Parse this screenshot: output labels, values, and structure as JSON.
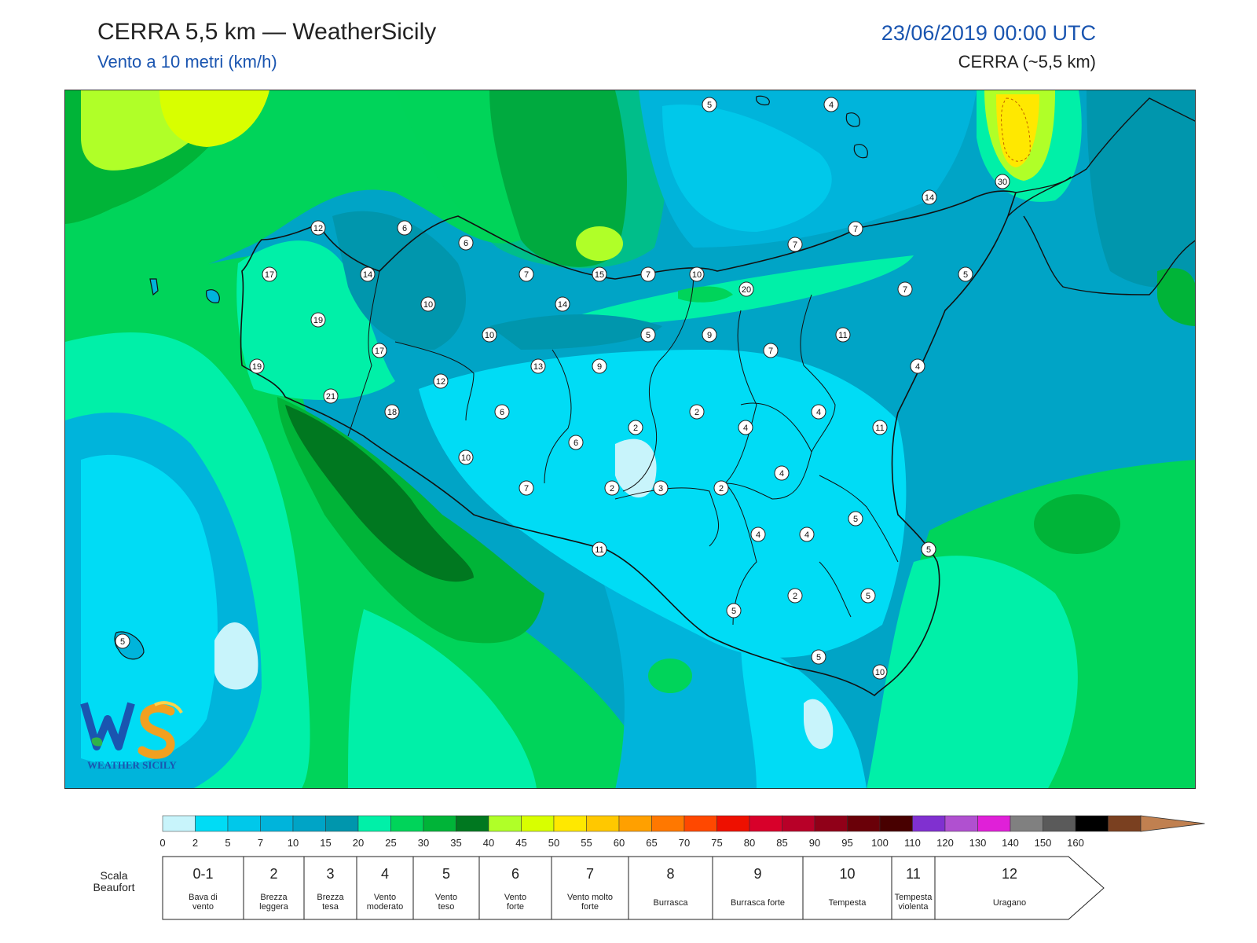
{
  "header": {
    "title": "CERRA 5,5 km — WeatherSicily",
    "subtitle": "Vento a 10 metri (km/h)",
    "datetime": "23/06/2019 00:00 UTC",
    "model": "CERRA (~5,5 km)"
  },
  "logo": {
    "text": "WEATHER SICILY",
    "icon": "ws-logo-icon"
  },
  "colorbar": {
    "ticks": [
      "0",
      "2",
      "5",
      "7",
      "10",
      "15",
      "20",
      "25",
      "30",
      "35",
      "40",
      "45",
      "50",
      "55",
      "60",
      "65",
      "70",
      "75",
      "80",
      "85",
      "90",
      "95",
      "100",
      "110",
      "120",
      "130",
      "140",
      "150",
      "160"
    ],
    "colors": [
      "#c8f4fb",
      "#00dcf5",
      "#00c8ea",
      "#00b4db",
      "#00a4c6",
      "#0096ad",
      "#00f0a8",
      "#00d45a",
      "#00b438",
      "#007820",
      "#b0ff28",
      "#d8ff00",
      "#ffe800",
      "#ffc800",
      "#ffa000",
      "#ff7800",
      "#ff4800",
      "#ee1000",
      "#d8002a",
      "#b80028",
      "#900018",
      "#6a0008",
      "#480000",
      "#8030d0",
      "#b050d0",
      "#e020d8",
      "#808080",
      "#5a5a5a",
      "#000000",
      "#7a4020",
      "#c08050"
    ]
  },
  "beaufort": {
    "label": "Scala Beaufort",
    "classes": [
      {
        "num": "0-1",
        "desc": "Bava di vento"
      },
      {
        "num": "2",
        "desc": "Brezza leggera"
      },
      {
        "num": "3",
        "desc": "Brezza tesa"
      },
      {
        "num": "4",
        "desc": "Vento moderato"
      },
      {
        "num": "5",
        "desc": "Vento teso"
      },
      {
        "num": "6",
        "desc": "Vento forte"
      },
      {
        "num": "7",
        "desc": "Vento molto forte"
      },
      {
        "num": "8",
        "desc": "Burrasca"
      },
      {
        "num": "9",
        "desc": "Burrasca forte"
      },
      {
        "num": "10",
        "desc": "Tempesta"
      },
      {
        "num": "11",
        "desc": "Tempesta violenta"
      },
      {
        "num": "12",
        "desc": "Uragano"
      }
    ]
  },
  "map_labels": [
    "5",
    "4",
    "14",
    "30",
    "12",
    "6",
    "6",
    "17",
    "14",
    "7",
    "15",
    "7",
    "10",
    "7",
    "7",
    "5",
    "20",
    "7",
    "10",
    "14",
    "19",
    "17",
    "10",
    "5",
    "9",
    "7",
    "11",
    "4",
    "19",
    "13",
    "9",
    "12",
    "21",
    "18",
    "6",
    "2",
    "2",
    "4",
    "4",
    "11",
    "6",
    "10",
    "7",
    "2",
    "3",
    "2",
    "4",
    "5",
    "4",
    "4",
    "5",
    "11",
    "5",
    "5",
    "2",
    "5",
    "5",
    "10",
    "5"
  ],
  "colors": {
    "accent": "#1a55b0"
  }
}
